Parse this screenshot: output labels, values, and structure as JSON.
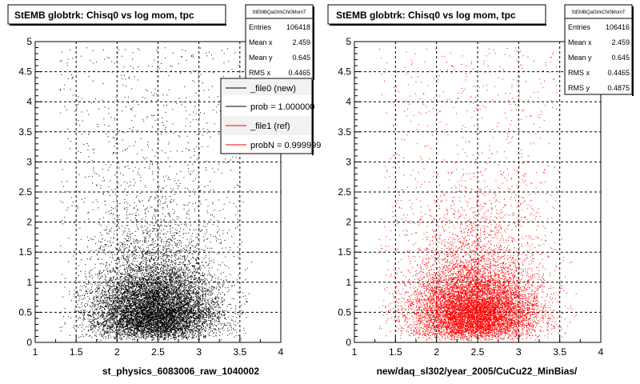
{
  "chart_data": [
    {
      "type": "scatter",
      "title": "StEMB globtrk: Chisq0 vs log mom, tpc",
      "xlabel": "st_physics_6083006_raw_1040002",
      "ylabel": "",
      "xlim": [
        1,
        4
      ],
      "ylim": [
        0,
        5
      ],
      "x_ticks": [
        "1",
        "1.5",
        "2",
        "2.5",
        "3",
        "3.5",
        "4"
      ],
      "y_ticks": [
        "0",
        "0.5",
        "1",
        "1.5",
        "2",
        "2.5",
        "3",
        "3.5",
        "4",
        "4.5",
        "5"
      ],
      "grid": true,
      "marker_color": "#000000",
      "stats": {
        "name": "StEMBQaGtrkChi0MomT",
        "rows": [
          {
            "label": "Entries",
            "value": "106418"
          },
          {
            "label": "Mean x",
            "value": "2.459"
          },
          {
            "label": "Mean y",
            "value": "0.645"
          },
          {
            "label": "RMS x",
            "value": "0.4465"
          }
        ]
      },
      "legend": {
        "position": "top-right",
        "entries": [
          {
            "label": "_file0 (new)",
            "color": "#000000"
          },
          {
            "label": "prob = 1.000000",
            "color": "#000000"
          },
          {
            "label": "_file1 (ref)",
            "color": "#ff0000"
          },
          {
            "label": "probN = 0.999999",
            "color": "#ff0000"
          }
        ]
      },
      "distribution": {
        "mean_x": 2.459,
        "mean_y": 0.645,
        "rms_x": 0.4465,
        "rms_y": 0.4875
      }
    },
    {
      "type": "scatter",
      "title": "StEMB globtrk: Chisq0 vs log mom, tpc",
      "xlabel": "new/daq_sl302/year_2005/CuCu22_MinBias/",
      "ylabel": "",
      "xlim": [
        1,
        4
      ],
      "ylim": [
        0,
        5
      ],
      "x_ticks": [
        "1",
        "1.5",
        "2",
        "2.5",
        "3",
        "3.5",
        "4"
      ],
      "y_ticks": [
        "0",
        "0.5",
        "1",
        "1.5",
        "2",
        "2.5",
        "3",
        "3.5",
        "4",
        "4.5",
        "5"
      ],
      "grid": true,
      "marker_color": "#ff0000",
      "stats": {
        "name": "StEMBQaGtrkChi0MomT",
        "rows": [
          {
            "label": "Entries",
            "value": "106416"
          },
          {
            "label": "Mean x",
            "value": "2.459"
          },
          {
            "label": "Mean y",
            "value": "0.645"
          },
          {
            "label": "RMS x",
            "value": "0.4465"
          },
          {
            "label": "RMS y",
            "value": "0.4875"
          }
        ]
      },
      "distribution": {
        "mean_x": 2.459,
        "mean_y": 0.645,
        "rms_x": 0.4465,
        "rms_y": 0.4875
      }
    }
  ]
}
